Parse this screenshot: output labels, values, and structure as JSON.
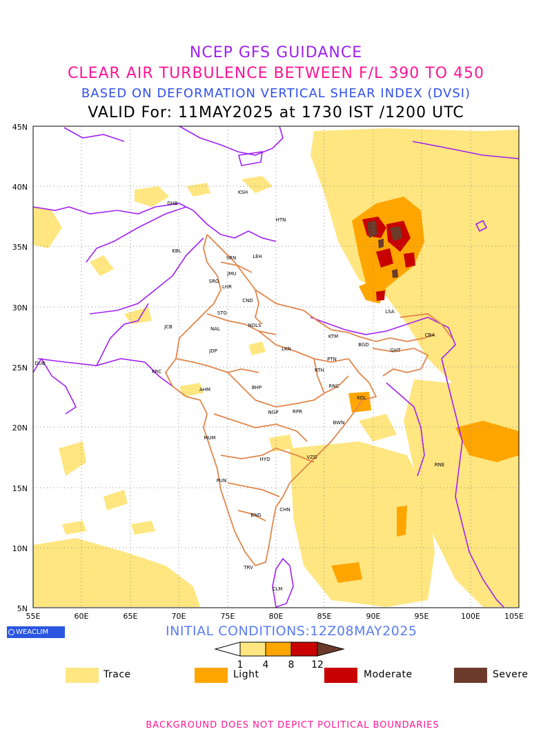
{
  "titles": {
    "line1": "NCEP GFS GUIDANCE",
    "line2": "CLEAR AIR TURBULENCE BETWEEN F/L 390 TO 450",
    "line3": "BASED ON DEFORMATION VERTICAL SHEAR INDEX (DVSI)",
    "line4": "VALID For: 11MAY2025 at 1730 IST /1200 UTC"
  },
  "axes": {
    "lat_labels": [
      "45N",
      "40N",
      "35N",
      "30N",
      "25N",
      "20N",
      "15N",
      "10N",
      "5N"
    ],
    "lon_labels": [
      "55E",
      "60E",
      "65E",
      "70E",
      "75E",
      "80E",
      "85E",
      "90E",
      "95E",
      "100E",
      "105E"
    ]
  },
  "cities": [
    {
      "code": "KSH"
    },
    {
      "code": "DHB"
    },
    {
      "code": "HTN"
    },
    {
      "code": "KBL"
    },
    {
      "code": "LEH"
    },
    {
      "code": "SRN"
    },
    {
      "code": "JMU"
    },
    {
      "code": "SRG"
    },
    {
      "code": "LHR"
    },
    {
      "code": "CND"
    },
    {
      "code": "STG"
    },
    {
      "code": "NDLS"
    },
    {
      "code": "JCB"
    },
    {
      "code": "NAL"
    },
    {
      "code": "LSA"
    },
    {
      "code": "KTM"
    },
    {
      "code": "BGD"
    },
    {
      "code": "CBA"
    },
    {
      "code": "GHT"
    },
    {
      "code": "JDP"
    },
    {
      "code": "LKN"
    },
    {
      "code": "PTN"
    },
    {
      "code": "DUB"
    },
    {
      "code": "KRC"
    },
    {
      "code": "RTH"
    },
    {
      "code": "BHP"
    },
    {
      "code": "RNC"
    },
    {
      "code": "AHM"
    },
    {
      "code": "KOL"
    },
    {
      "code": "NGP"
    },
    {
      "code": "RPR"
    },
    {
      "code": "BWN"
    },
    {
      "code": "MUM"
    },
    {
      "code": "HYD"
    },
    {
      "code": "VZG"
    },
    {
      "code": "RNE"
    },
    {
      "code": "PUN"
    },
    {
      "code": "BNG"
    },
    {
      "code": "CHN"
    },
    {
      "code": "TRV"
    },
    {
      "code": "CLM"
    }
  ],
  "colorbar": {
    "ticks": [
      "1",
      "4",
      "8",
      "12"
    ],
    "colors": [
      "#ffe680",
      "#ffa500",
      "#c80000",
      "#6b3a2a"
    ]
  },
  "legend": [
    {
      "label": "Trace",
      "color": "#ffe680"
    },
    {
      "label": "Light",
      "color": "#ffa500"
    },
    {
      "label": "Moderate",
      "color": "#c80000"
    },
    {
      "label": "Severe",
      "color": "#6b3a2a"
    }
  ],
  "initial_conditions": "INITIAL CONDITIONS:12Z08MAY2025",
  "logo_text": "WEACLIM",
  "footer": "BACKGROUND DOES NOT DEPICT POLITICAL BOUNDARIES",
  "colors": {
    "boundary_purple": "#a020f0",
    "boundary_orange": "#e0854a",
    "trace": "#ffe680",
    "light": "#ffa500",
    "moderate": "#c80000",
    "severe": "#6b3a2a"
  }
}
